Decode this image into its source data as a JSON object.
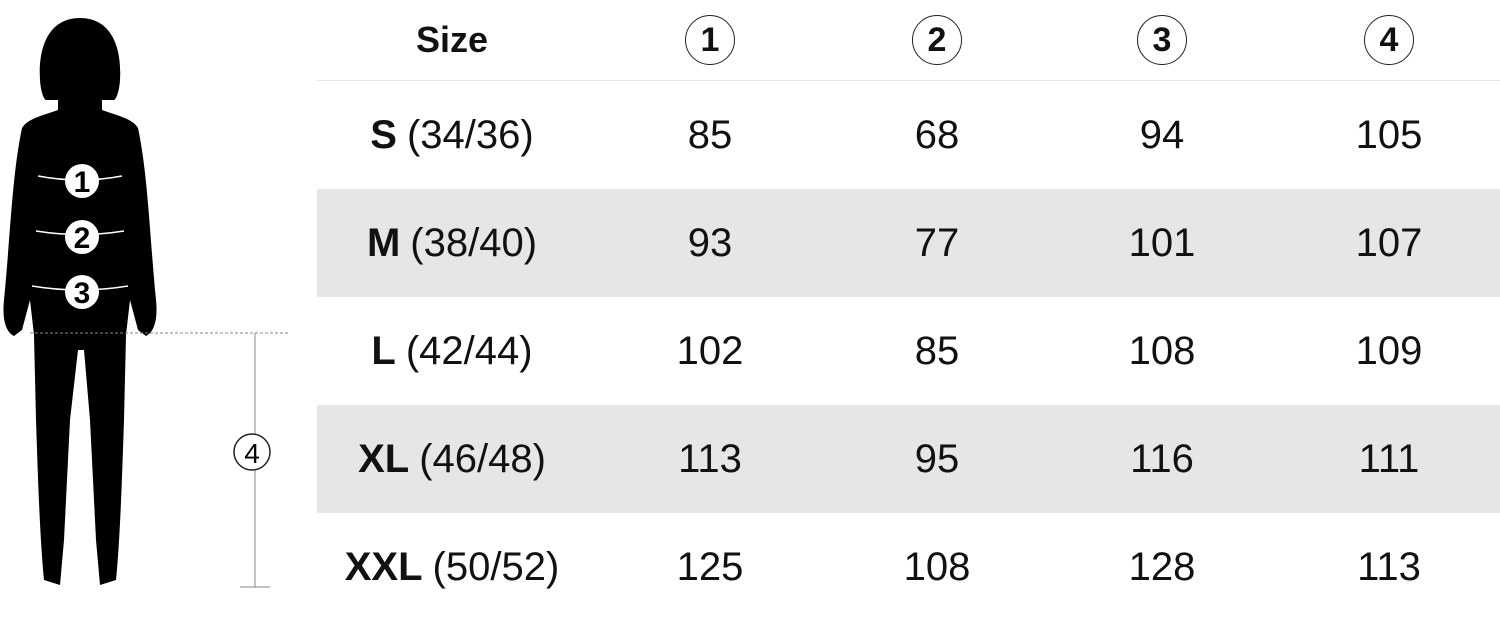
{
  "header": {
    "size_label": "Size",
    "columns": [
      "1",
      "2",
      "3",
      "4"
    ]
  },
  "figure": {
    "markers": [
      "1",
      "2",
      "3",
      "4"
    ]
  },
  "rows": [
    {
      "size": "S",
      "eu": "(34/36)",
      "values": [
        "85",
        "68",
        "94",
        "105"
      ]
    },
    {
      "size": "M",
      "eu": "(38/40)",
      "values": [
        "93",
        "77",
        "101",
        "107"
      ]
    },
    {
      "size": "L",
      "eu": "(42/44)",
      "values": [
        "102",
        "85",
        "108",
        "109"
      ]
    },
    {
      "size": "XL",
      "eu": "(46/48)",
      "values": [
        "113",
        "95",
        "116",
        "111"
      ]
    },
    {
      "size": "XXL",
      "eu": "(50/52)",
      "values": [
        "125",
        "108",
        "128",
        "113"
      ]
    }
  ],
  "colors": {
    "stripe": "#e6e6e6",
    "text": "#111111"
  }
}
